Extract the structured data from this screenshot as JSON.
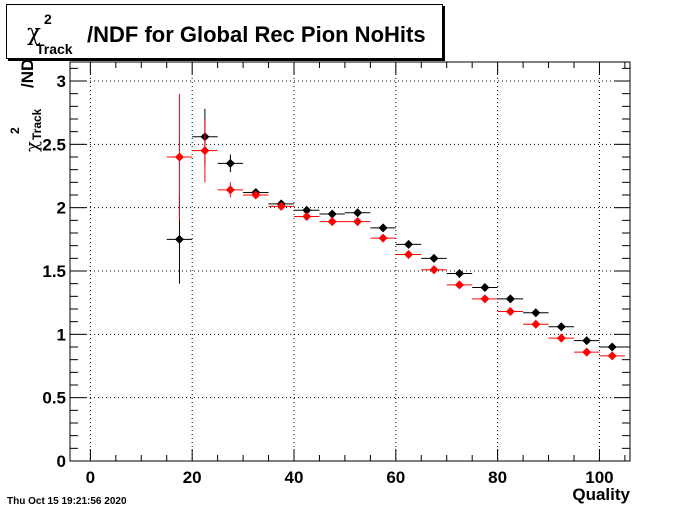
{
  "chart_data": {
    "type": "scatter",
    "title": {
      "symbol": "χ",
      "superscript": "2",
      "subscript": "Track",
      "text": "/NDF for Global Rec Pion NoHits"
    },
    "ylabel": {
      "symbol": "χ",
      "superscript": "2",
      "subscript": "Track",
      "text": "/ND"
    },
    "xlabel": "Quality",
    "xlim": [
      -4,
      106
    ],
    "ylim": [
      0,
      3.15
    ],
    "x_ticks": [
      "0",
      "20",
      "40",
      "60",
      "80",
      "100"
    ],
    "y_ticks": [
      "0",
      "0.5",
      "1",
      "1.5",
      "2",
      "2.5",
      "3"
    ],
    "grid": true,
    "x_bin_half_width": 2.5,
    "series": [
      {
        "color": "#000000",
        "points": [
          {
            "x": 17.5,
            "y": 1.75,
            "err": 0.35
          },
          {
            "x": 22.5,
            "y": 2.56,
            "err": 0.22
          },
          {
            "x": 27.5,
            "y": 2.35,
            "err": 0.07
          },
          {
            "x": 32.5,
            "y": 2.12,
            "err": 0.03
          },
          {
            "x": 37.5,
            "y": 2.03,
            "err": 0.02
          },
          {
            "x": 42.5,
            "y": 1.98,
            "err": 0.02
          },
          {
            "x": 47.5,
            "y": 1.95,
            "err": 0.015
          },
          {
            "x": 52.5,
            "y": 1.96,
            "err": 0.015
          },
          {
            "x": 57.5,
            "y": 1.84,
            "err": 0.01
          },
          {
            "x": 62.5,
            "y": 1.71,
            "err": 0.01
          },
          {
            "x": 67.5,
            "y": 1.6,
            "err": 0.01
          },
          {
            "x": 72.5,
            "y": 1.48,
            "err": 0.01
          },
          {
            "x": 77.5,
            "y": 1.37,
            "err": 0.01
          },
          {
            "x": 82.5,
            "y": 1.28,
            "err": 0.01
          },
          {
            "x": 87.5,
            "y": 1.17,
            "err": 0.01
          },
          {
            "x": 92.5,
            "y": 1.06,
            "err": 0.01
          },
          {
            "x": 97.5,
            "y": 0.95,
            "err": 0.01
          },
          {
            "x": 102.5,
            "y": 0.9,
            "err": 0.01
          }
        ]
      },
      {
        "color": "#ff0000",
        "points": [
          {
            "x": 17.5,
            "y": 2.4,
            "err": 0.5
          },
          {
            "x": 22.5,
            "y": 2.45,
            "err": 0.25
          },
          {
            "x": 27.5,
            "y": 2.14,
            "err": 0.06
          },
          {
            "x": 32.5,
            "y": 2.1,
            "err": 0.03
          },
          {
            "x": 37.5,
            "y": 2.01,
            "err": 0.02
          },
          {
            "x": 42.5,
            "y": 1.93,
            "err": 0.02
          },
          {
            "x": 47.5,
            "y": 1.89,
            "err": 0.015
          },
          {
            "x": 52.5,
            "y": 1.89,
            "err": 0.015
          },
          {
            "x": 57.5,
            "y": 1.76,
            "err": 0.01
          },
          {
            "x": 62.5,
            "y": 1.63,
            "err": 0.01
          },
          {
            "x": 67.5,
            "y": 1.51,
            "err": 0.01
          },
          {
            "x": 72.5,
            "y": 1.39,
            "err": 0.01
          },
          {
            "x": 77.5,
            "y": 1.28,
            "err": 0.01
          },
          {
            "x": 82.5,
            "y": 1.18,
            "err": 0.01
          },
          {
            "x": 87.5,
            "y": 1.08,
            "err": 0.01
          },
          {
            "x": 92.5,
            "y": 0.97,
            "err": 0.01
          },
          {
            "x": 97.5,
            "y": 0.86,
            "err": 0.01
          },
          {
            "x": 102.5,
            "y": 0.83,
            "err": 0.01
          }
        ]
      }
    ]
  },
  "footer": {
    "timestamp": "Thu Oct 15 19:21:56 2020"
  }
}
